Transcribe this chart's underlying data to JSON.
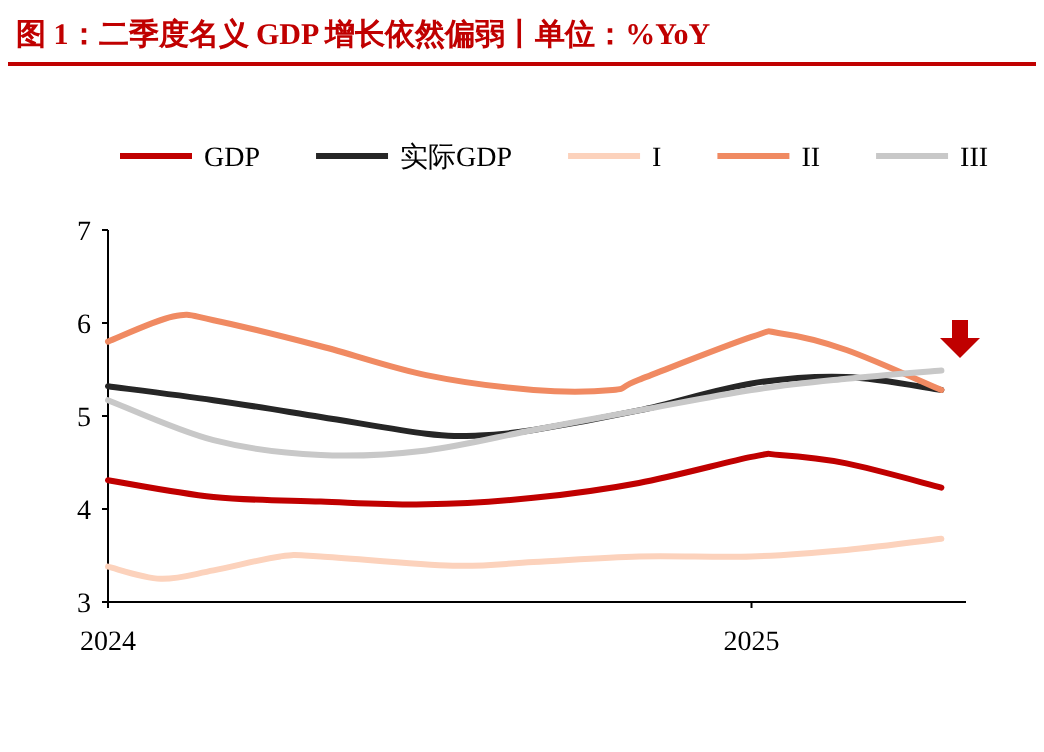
{
  "chart_data": {
    "type": "line",
    "title": "图 1：二季度名义 GDP 增长依然偏弱丨单位：%YoY",
    "xlim": [
      "2024-01-01",
      "2025-05-03"
    ],
    "xticks": [
      {
        "value": "2024-01-01",
        "label": "2024"
      },
      {
        "value": "2025-01-01",
        "label": "2025"
      }
    ],
    "ylim": [
      3,
      7
    ],
    "yticks": [
      3,
      4,
      5,
      6,
      7
    ],
    "grid": false,
    "legend": "top",
    "marker": "none",
    "line_style": "solid",
    "series": [
      {
        "name": "GDP",
        "color": "#c00000",
        "x": [
          "2024-01-01",
          "2024-03-01",
          "2024-05-01",
          "2024-06-30",
          "2024-08-30",
          "2024-10-29",
          "2025-01-01",
          "2025-01-17",
          "2025-02-24",
          "2025-04-19"
        ],
        "values": [
          4.31,
          4.13,
          4.08,
          4.05,
          4.12,
          4.28,
          4.56,
          4.58,
          4.49,
          4.23
        ]
      },
      {
        "name": "实际GDP",
        "color": "#262626",
        "x": [
          "2024-01-01",
          "2024-03-01",
          "2024-05-01",
          "2024-06-30",
          "2024-07-30",
          "2024-08-30",
          "2024-10-29",
          "2025-01-01",
          "2025-02-24",
          "2025-04-19"
        ],
        "values": [
          5.32,
          5.17,
          4.99,
          4.81,
          4.79,
          4.85,
          5.06,
          5.35,
          5.42,
          5.28
        ]
      },
      {
        "name": "I",
        "color": "#fcd2bc",
        "x": [
          "2024-01-01",
          "2024-01-31",
          "2024-03-01",
          "2024-04-08",
          "2024-05-01",
          "2024-07-15",
          "2024-08-30",
          "2024-10-29",
          "2025-01-01",
          "2025-02-24",
          "2025-04-19"
        ],
        "values": [
          3.38,
          3.25,
          3.34,
          3.49,
          3.49,
          3.39,
          3.43,
          3.49,
          3.49,
          3.56,
          3.68
        ]
      },
      {
        "name": "II",
        "color": "#f08a62",
        "x": [
          "2024-01-01",
          "2024-02-07",
          "2024-03-01",
          "2024-05-01",
          "2024-06-30",
          "2024-08-30",
          "2024-10-14",
          "2024-10-29",
          "2025-01-01",
          "2025-01-17",
          "2025-02-24",
          "2025-04-19"
        ],
        "values": [
          5.8,
          6.07,
          6.03,
          5.75,
          5.44,
          5.28,
          5.28,
          5.39,
          5.85,
          5.89,
          5.71,
          5.28
        ]
      },
      {
        "name": "III",
        "color": "#c8c8c8",
        "x": [
          "2024-01-01",
          "2024-03-01",
          "2024-05-01",
          "2024-06-30",
          "2024-08-30",
          "2024-10-29",
          "2025-01-01",
          "2025-02-24",
          "2025-04-19"
        ],
        "values": [
          5.17,
          4.74,
          4.58,
          4.63,
          4.85,
          5.06,
          5.28,
          5.4,
          5.49
        ]
      }
    ]
  }
}
